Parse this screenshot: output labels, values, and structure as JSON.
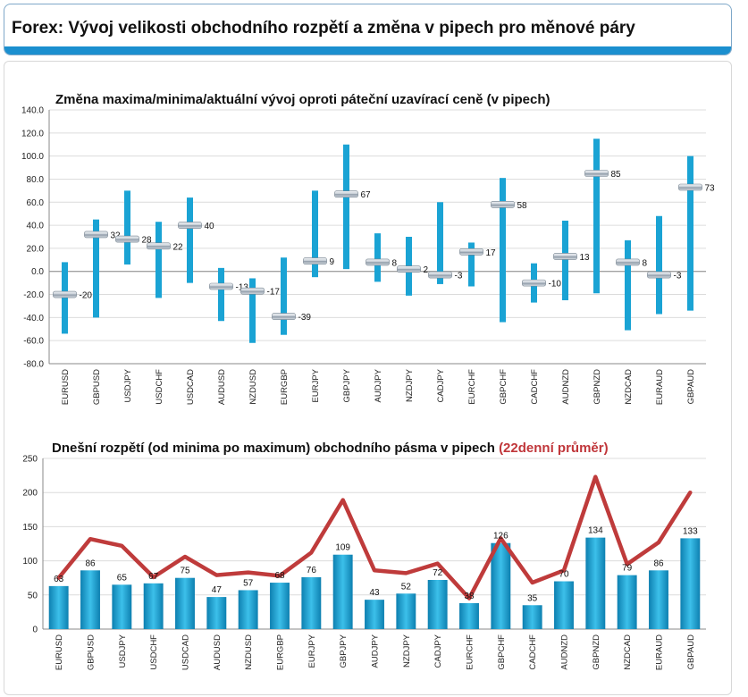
{
  "header": {
    "title": "Forex: Vývoj velikosti obchodního rozpětí a změna v pipech pro měnové páry"
  },
  "colors": {
    "bar": "#1aa3d4",
    "bar_dark": "#0d7fb0",
    "line": "#bf3b3b",
    "accent": "#1b8fcf",
    "highlight": "#c0363a"
  },
  "chart_data": [
    {
      "type": "bar",
      "title": "Změna maxima/minima/aktuální vývoj oproti páteční uzavírací ceně (v pipech)",
      "categories": [
        "EURUSD",
        "GBPUSD",
        "USDJPY",
        "USDCHF",
        "USDCAD",
        "AUDUSD",
        "NZDUSD",
        "EURGBP",
        "EURJPY",
        "GBPJPY",
        "AUDJPY",
        "NZDJPY",
        "CADJPY",
        "EURCHF",
        "GBPCHF",
        "CADCHF",
        "AUDNZD",
        "GBPNZD",
        "NZDCAD",
        "EURAUD",
        "GBPAUD"
      ],
      "high": [
        8,
        45,
        70,
        43,
        64,
        3,
        -6,
        12,
        70,
        110,
        33,
        30,
        60,
        25,
        81,
        7,
        44,
        115,
        27,
        48,
        100
      ],
      "low": [
        -54,
        -40,
        6,
        -23,
        -10,
        -43,
        -62,
        -55,
        -5,
        2,
        -9,
        -21,
        -11,
        -13,
        -44,
        -27,
        -25,
        -19,
        -51,
        -37,
        -34
      ],
      "current": [
        -20,
        32,
        28,
        22,
        40,
        -13,
        -17,
        -39,
        9,
        67,
        8,
        2,
        -3,
        17,
        58,
        -10,
        13,
        85,
        8,
        -3,
        73
      ],
      "current_labels": [
        "-20",
        "32",
        "28",
        "22",
        "40",
        "-13",
        "-17",
        "-39",
        "9",
        "67",
        "8",
        "2",
        "-3",
        "17",
        "58",
        "-10",
        "13",
        "85",
        "8",
        "-3",
        "73"
      ],
      "ylim": [
        -80,
        140
      ],
      "yticks": [
        "-80.0",
        "-60.0",
        "-40.0",
        "-20.0",
        "0.0",
        "20.0",
        "40.0",
        "60.0",
        "80.0",
        "100.0",
        "120.0",
        "140.0"
      ],
      "grid": true
    },
    {
      "type": "bar",
      "title": "Dnešní rozpětí (od minima po maximum) obchodního pásma v pipech",
      "title_highlight": "(22denní průměr)",
      "categories": [
        "EURUSD",
        "GBPUSD",
        "USDJPY",
        "USDCHF",
        "USDCAD",
        "AUDUSD",
        "NZDUSD",
        "EURGBP",
        "EURJPY",
        "GBPJPY",
        "AUDJPY",
        "NZDJPY",
        "CADJPY",
        "EURCHF",
        "GBPCHF",
        "CADCHF",
        "AUDNZD",
        "GBPNZD",
        "NZDCAD",
        "EURAUD",
        "GBPAUD"
      ],
      "series": [
        {
          "values": [
            63,
            86,
            65,
            67,
            75,
            47,
            57,
            68,
            76,
            109,
            43,
            52,
            72,
            38,
            126,
            35,
            70,
            134,
            79,
            86,
            133
          ]
        },
        {
          "values": [
            75,
            132,
            122,
            76,
            106,
            79,
            83,
            78,
            112,
            189,
            86,
            82,
            96,
            45,
            133,
            68,
            86,
            223,
            95,
            127,
            200
          ]
        }
      ],
      "value_labels": [
        "63",
        "86",
        "65",
        "67",
        "75",
        "47",
        "57",
        "68",
        "76",
        "109",
        "43",
        "52",
        "72",
        "38",
        "126",
        "35",
        "70",
        "134",
        "79",
        "86",
        "133"
      ],
      "ylim": [
        0,
        250
      ],
      "yticks": [
        "0",
        "50",
        "100",
        "150",
        "200",
        "250"
      ],
      "grid": true
    }
  ]
}
